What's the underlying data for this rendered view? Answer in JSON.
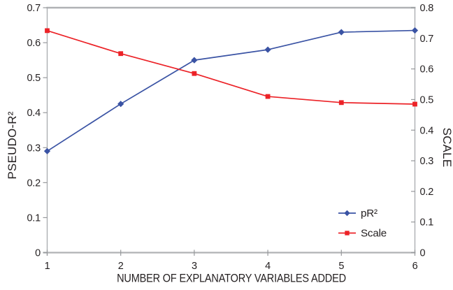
{
  "figure": {
    "background": "#ffffff"
  },
  "chart_data": {
    "type": "line",
    "title": "",
    "xlabel": "NUMBER OF EXPLANATORY VARIABLES ADDED",
    "ylabel_left": "PSEUDO-R²",
    "ylabel_right": "SCALE",
    "x": [
      1,
      2,
      3,
      4,
      5,
      6
    ],
    "x_tick_labels": [
      "1",
      "2",
      "3",
      "4",
      "5",
      "6"
    ],
    "y_left": {
      "min": 0,
      "max": 0.7,
      "tick_labels": [
        "0",
        "0.1",
        "0.2",
        "0.3",
        "0.4",
        "0.5",
        "0.6",
        "0.7"
      ]
    },
    "y_right": {
      "min": 0,
      "max": 0.8,
      "tick_labels": [
        "0",
        "0.1",
        "0.2",
        "0.3",
        "0.4",
        "0.5",
        "0.6",
        "0.7",
        "0.8"
      ]
    },
    "grid": false,
    "series": [
      {
        "name": "pR²",
        "axis": "left",
        "color": "#3A53A4",
        "marker": "diamond",
        "values": [
          0.29,
          0.425,
          0.55,
          0.58,
          0.63,
          0.635
        ]
      },
      {
        "name": "Scale",
        "axis": "right",
        "color": "#EC2227",
        "marker": "square",
        "values": [
          0.725,
          0.65,
          0.585,
          0.51,
          0.49,
          0.485
        ]
      }
    ],
    "legend": {
      "position": "inside-bottom-right",
      "items": [
        "pR²",
        "Scale"
      ]
    },
    "axis_color": "#ADAFB2",
    "frame_color": "#B0B2B5",
    "tick_color": "#97999C",
    "text_color": "#231F20"
  }
}
